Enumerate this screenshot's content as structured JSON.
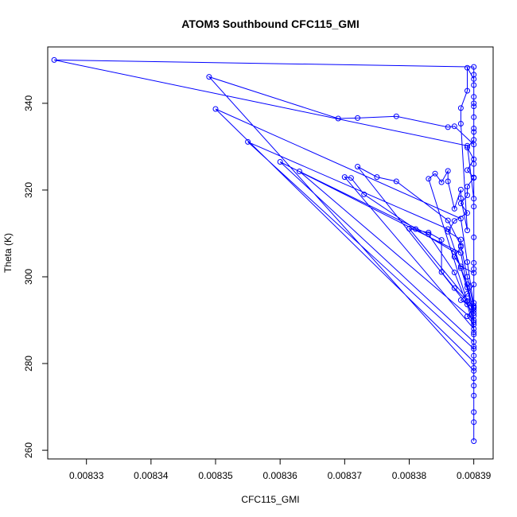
{
  "chart_data": {
    "type": "line",
    "title": "ATOM3 Southbound CFC115_GMI",
    "xlabel": "CFC115_GMI",
    "ylabel": "Theta (K)",
    "xlim": [
      0.008324,
      0.008393
    ],
    "ylim": [
      258,
      353
    ],
    "x_ticks": [
      0.00833,
      0.00834,
      0.00835,
      0.00836,
      0.00837,
      0.00838,
      0.00839
    ],
    "x_tick_labels": [
      "0.00833",
      "0.00834",
      "0.00835",
      "0.00836",
      "0.00837",
      "0.00838",
      "0.00839"
    ],
    "y_ticks": [
      260,
      280,
      300,
      320,
      340
    ],
    "y_tick_labels": [
      "260",
      "280",
      "300",
      "320",
      "340"
    ],
    "grid": false,
    "series": [
      {
        "color": "#0000ff",
        "marker": "open-circle",
        "points": [
          [
            0.00839,
            262.1
          ],
          [
            0.00839,
            266.5
          ],
          [
            0.00839,
            268.8
          ],
          [
            0.00839,
            272.6
          ],
          [
            0.00839,
            274.9
          ],
          [
            0.00839,
            276.6
          ],
          [
            0.00839,
            279.0
          ],
          [
            0.00839,
            281.8
          ],
          [
            0.00839,
            283.9
          ],
          [
            0.00839,
            286.7
          ],
          [
            0.00839,
            289.0
          ],
          [
            0.008389,
            290.9
          ],
          [
            0.00839,
            292.8
          ],
          [
            0.008388,
            294.6
          ],
          [
            0.008389,
            296.1
          ],
          [
            0.00839,
            298.2
          ],
          [
            0.00839,
            300.9
          ],
          [
            0.008388,
            302.4
          ],
          [
            0.008387,
            304.6
          ],
          [
            0.008388,
            306.9
          ],
          [
            0.008388,
            308.6
          ],
          [
            0.008386,
            310.4
          ],
          [
            0.008387,
            312.9
          ],
          [
            0.008389,
            314.7
          ],
          [
            0.008388,
            316.9
          ],
          [
            0.008389,
            318.8
          ],
          [
            0.008389,
            320.8
          ],
          [
            0.00839,
            322.9
          ],
          [
            0.008389,
            324.6
          ],
          [
            0.00839,
            327.1
          ],
          [
            0.008389,
            329.8
          ],
          [
            0.00839,
            331.6
          ],
          [
            0.00839,
            334.2
          ],
          [
            0.00839,
            336.8
          ],
          [
            0.00839,
            339.3
          ],
          [
            0.00839,
            341.5
          ],
          [
            0.00839,
            344.2
          ],
          [
            0.00839,
            346.6
          ],
          [
            0.00839,
            348.4
          ],
          [
            0.008325,
            350.0
          ],
          [
            0.008389,
            330.2
          ],
          [
            0.00839,
            318.0
          ],
          [
            0.00839,
            303.2
          ],
          [
            0.00839,
            291.0
          ],
          [
            0.00839,
            278.3
          ],
          [
            0.008349,
            346.1
          ],
          [
            0.008369,
            336.5
          ],
          [
            0.008372,
            336.6
          ],
          [
            0.008378,
            337.0
          ],
          [
            0.008386,
            334.5
          ],
          [
            0.008387,
            334.7
          ],
          [
            0.00839,
            330.5
          ],
          [
            0.00839,
            322.8
          ],
          [
            0.00839,
            316.2
          ],
          [
            0.00839,
            309.1
          ],
          [
            0.00839,
            301.8
          ],
          [
            0.00839,
            294.0
          ],
          [
            0.00839,
            287.2
          ],
          [
            0.00839,
            280.4
          ],
          [
            0.00835,
            338.7
          ],
          [
            0.008388,
            313.4
          ],
          [
            0.008389,
            303.4
          ],
          [
            0.00839,
            293.3
          ],
          [
            0.00839,
            283.4
          ],
          [
            0.008355,
            331.1
          ],
          [
            0.008386,
            311.0
          ],
          [
            0.008388,
            302.0
          ],
          [
            0.00839,
            292.3
          ],
          [
            0.00839,
            285.0
          ],
          [
            0.00836,
            326.5
          ],
          [
            0.008388,
            305.5
          ],
          [
            0.008389,
            297.5
          ],
          [
            0.00839,
            290.0
          ],
          [
            0.008363,
            324.3
          ],
          [
            0.008383,
            309.8
          ],
          [
            0.008387,
            301.0
          ],
          [
            0.008389,
            293.6
          ],
          [
            0.00839,
            288.0
          ],
          [
            0.00837,
            323.0
          ],
          [
            0.008371,
            322.8
          ],
          [
            0.008373,
            319.0
          ],
          [
            0.008381,
            311.0
          ],
          [
            0.008387,
            305.7
          ],
          [
            0.008389,
            298.3
          ],
          [
            0.00839,
            291.6
          ],
          [
            0.008372,
            325.4
          ],
          [
            0.008375,
            323.0
          ],
          [
            0.008378,
            322.0
          ],
          [
            0.008386,
            313.0
          ],
          [
            0.008388,
            307.2
          ],
          [
            0.008389,
            300.0
          ],
          [
            0.00839,
            293.0
          ],
          [
            0.00838,
            311.1
          ],
          [
            0.008383,
            310.2
          ],
          [
            0.008385,
            308.5
          ],
          [
            0.008385,
            301.1
          ],
          [
            0.008387,
            297.4
          ],
          [
            0.008389,
            294.4
          ],
          [
            0.00839,
            289.5
          ],
          [
            0.008383,
            322.6
          ],
          [
            0.008384,
            323.8
          ],
          [
            0.008385,
            321.8
          ],
          [
            0.008386,
            324.4
          ],
          [
            0.008386,
            322.0
          ],
          [
            0.008387,
            315.7
          ],
          [
            0.008388,
            320.1
          ],
          [
            0.008388,
            318.1
          ],
          [
            0.008389,
            310.7
          ],
          [
            0.008388,
            335.3
          ],
          [
            0.008388,
            338.9
          ],
          [
            0.008389,
            342.9
          ],
          [
            0.008389,
            348.2
          ],
          [
            0.00839,
            345.6
          ],
          [
            0.00839,
            340.0
          ],
          [
            0.00839,
            333.4
          ],
          [
            0.00839,
            326.0
          ]
        ]
      }
    ]
  }
}
